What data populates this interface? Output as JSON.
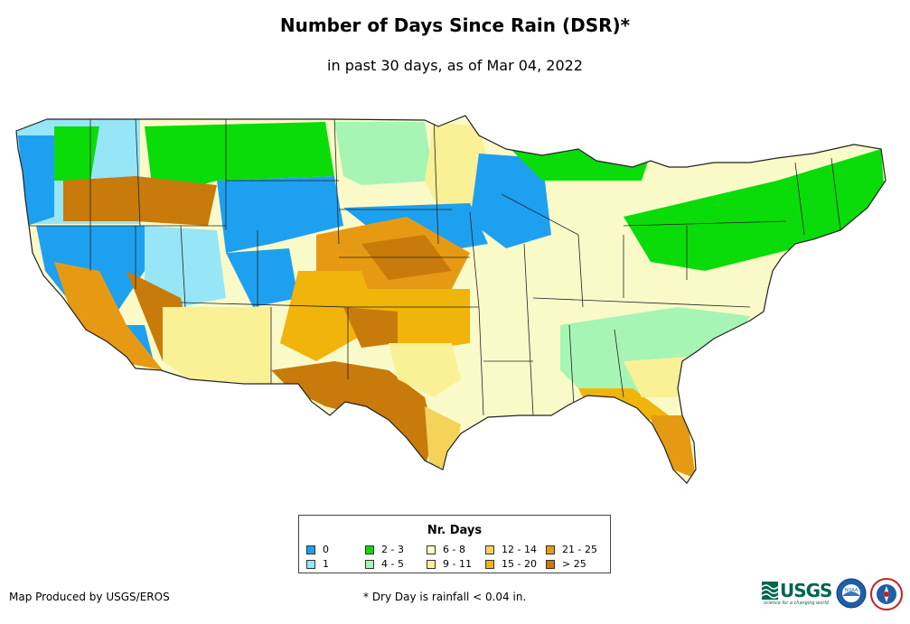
{
  "title": "Number of Days Since Rain (DSR)*",
  "subtitle": "in past 30 days, as of Mar 04, 2022",
  "legend": {
    "title": "Nr. Days",
    "items": [
      {
        "label": "0",
        "color": "#1ea0f0"
      },
      {
        "label": "1",
        "color": "#96e6f8"
      },
      {
        "label": "2 - 3",
        "color": "#0adc0a"
      },
      {
        "label": "4 - 5",
        "color": "#a6f5b4"
      },
      {
        "label": "6 - 8",
        "color": "#fafac8"
      },
      {
        "label": "9 - 11",
        "color": "#faf096"
      },
      {
        "label": "12 - 14",
        "color": "#f5d25a"
      },
      {
        "label": "15 - 20",
        "color": "#f0b40a"
      },
      {
        "label": "21 - 25",
        "color": "#e69a14"
      },
      {
        "label": "> 25",
        "color": "#c87a0a"
      }
    ]
  },
  "footer": {
    "producer": "Map Produced by USGS/EROS",
    "footnote": "* Dry Day is rainfall < 0.04 in."
  },
  "logos": {
    "usgs": "USGS",
    "usgs_tagline": "science for a changing world",
    "noaa": "NOAA"
  }
}
